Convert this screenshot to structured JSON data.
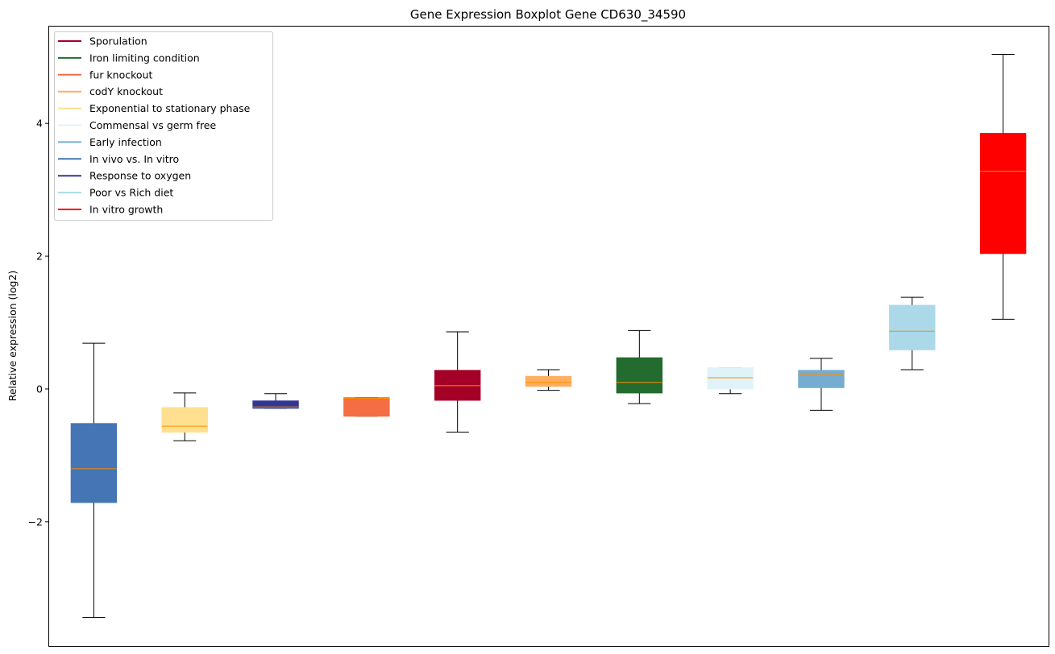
{
  "chart_data": {
    "type": "boxplot",
    "title": "Gene Expression Boxplot Gene CD630_34590",
    "xlabel": "",
    "ylabel": "Relative expression (log2)",
    "ylim": [
      -3.87,
      5.47
    ],
    "yticks": [
      -2,
      0,
      2,
      4
    ],
    "ytick_labels": [
      "−2",
      "0",
      "2",
      "4"
    ],
    "grid": false,
    "legend_position": "top-left",
    "median_color": "#ff8c00",
    "series": [
      {
        "name": "In vivo vs. In vitro",
        "color": "#4575b4",
        "whisker_low": -3.44,
        "q1": -1.71,
        "median": -1.2,
        "q3": -0.52,
        "whisker_high": 0.69
      },
      {
        "name": "Exponential to stationary phase",
        "color": "#fee090",
        "whisker_low": -0.78,
        "q1": -0.65,
        "median": -0.56,
        "q3": -0.28,
        "whisker_high": -0.06
      },
      {
        "name": "Response to oxygen",
        "color": "#313695",
        "whisker_low": -0.29,
        "q1": -0.29,
        "median": -0.27,
        "q3": -0.18,
        "whisker_high": -0.07
      },
      {
        "name": "fur knockout",
        "color": "#f46d43",
        "whisker_low": -0.41,
        "q1": -0.41,
        "median": -0.14,
        "q3": -0.13,
        "whisker_high": -0.13
      },
      {
        "name": "Sporulation",
        "color": "#a50026",
        "whisker_low": -0.65,
        "q1": -0.17,
        "median": 0.05,
        "q3": 0.28,
        "whisker_high": 0.86
      },
      {
        "name": "codY knockout",
        "color": "#fdae61",
        "whisker_low": -0.02,
        "q1": 0.04,
        "median": 0.1,
        "q3": 0.19,
        "whisker_high": 0.29
      },
      {
        "name": "Iron limiting condition",
        "color": "#236b2e",
        "whisker_low": -0.22,
        "q1": -0.06,
        "median": 0.1,
        "q3": 0.47,
        "whisker_high": 0.88
      },
      {
        "name": "Commensal vs germ free",
        "color": "#e0f3f8",
        "whisker_low": -0.07,
        "q1": 0.0,
        "median": 0.17,
        "q3": 0.32,
        "whisker_high": 0.32
      },
      {
        "name": "Early infection",
        "color": "#74add1",
        "whisker_low": -0.32,
        "q1": 0.02,
        "median": 0.22,
        "q3": 0.28,
        "whisker_high": 0.46
      },
      {
        "name": "Poor vs Rich diet",
        "color": "#abd9e9",
        "whisker_low": 0.29,
        "q1": 0.59,
        "median": 0.87,
        "q3": 1.26,
        "whisker_high": 1.38
      },
      {
        "name": "In vitro growth",
        "color": "#ff0000",
        "whisker_low": 1.05,
        "q1": 2.04,
        "median": 3.28,
        "q3": 3.85,
        "whisker_high": 5.04
      }
    ],
    "legend": [
      {
        "label": "Sporulation",
        "color": "#a50026"
      },
      {
        "label": "Iron limiting condition",
        "color": "#236b2e"
      },
      {
        "label": "fur knockout",
        "color": "#f46d43"
      },
      {
        "label": "codY knockout",
        "color": "#fdae61"
      },
      {
        "label": "Exponential to stationary phase",
        "color": "#fee090"
      },
      {
        "label": "Commensal vs germ free",
        "color": "#e0f3f8"
      },
      {
        "label": "Early infection",
        "color": "#74add1"
      },
      {
        "label": "In vivo vs. In vitro",
        "color": "#4575b4"
      },
      {
        "label": "Response to oxygen",
        "color": "#313695"
      },
      {
        "label": "Poor vs Rich diet",
        "color": "#abd9e9"
      },
      {
        "label": "In vitro growth",
        "color": "#ff0000"
      }
    ]
  }
}
